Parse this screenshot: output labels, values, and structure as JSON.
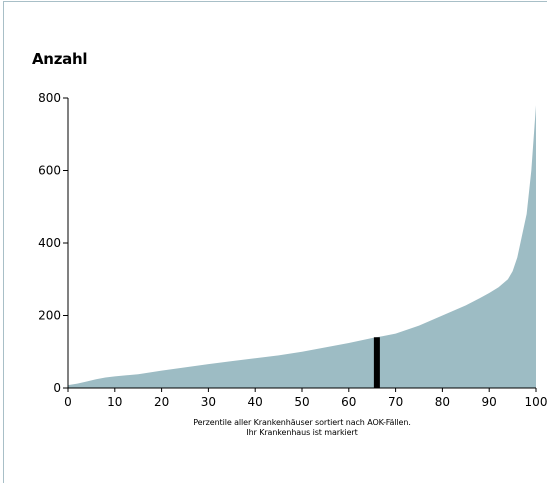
{
  "chart_data": {
    "type": "area",
    "title": "",
    "ylabel": "Anzahl",
    "xlabel_lines": [
      "Perzentile aller Krankenhäuser sortiert nach AOK-Fällen.",
      "Ihr Krankenhaus ist markiert"
    ],
    "xlim": [
      0,
      100
    ],
    "ylim": [
      0,
      800
    ],
    "x_ticks": [
      0,
      10,
      20,
      30,
      40,
      50,
      60,
      70,
      80,
      90,
      100
    ],
    "y_ticks": [
      0,
      200,
      400,
      600,
      800
    ],
    "grid": false,
    "colors": {
      "area": "#9dbcc4",
      "marker": "#000000",
      "axis": "#000000"
    },
    "series": [
      {
        "x": [
          0,
          2,
          4,
          6,
          8,
          10,
          15,
          20,
          25,
          30,
          35,
          40,
          45,
          50,
          55,
          60,
          65,
          66,
          70,
          75,
          80,
          85,
          88,
          90,
          92,
          94,
          95,
          96,
          97,
          98,
          99,
          100
        ],
        "y": [
          8,
          12,
          18,
          24,
          29,
          32,
          38,
          48,
          57,
          66,
          74,
          82,
          90,
          100,
          112,
          124,
          138,
          140,
          150,
          172,
          200,
          228,
          248,
          262,
          278,
          300,
          322,
          360,
          420,
          480,
          600,
          780
        ]
      }
    ],
    "marker": {
      "x": 66,
      "y": 140
    }
  }
}
